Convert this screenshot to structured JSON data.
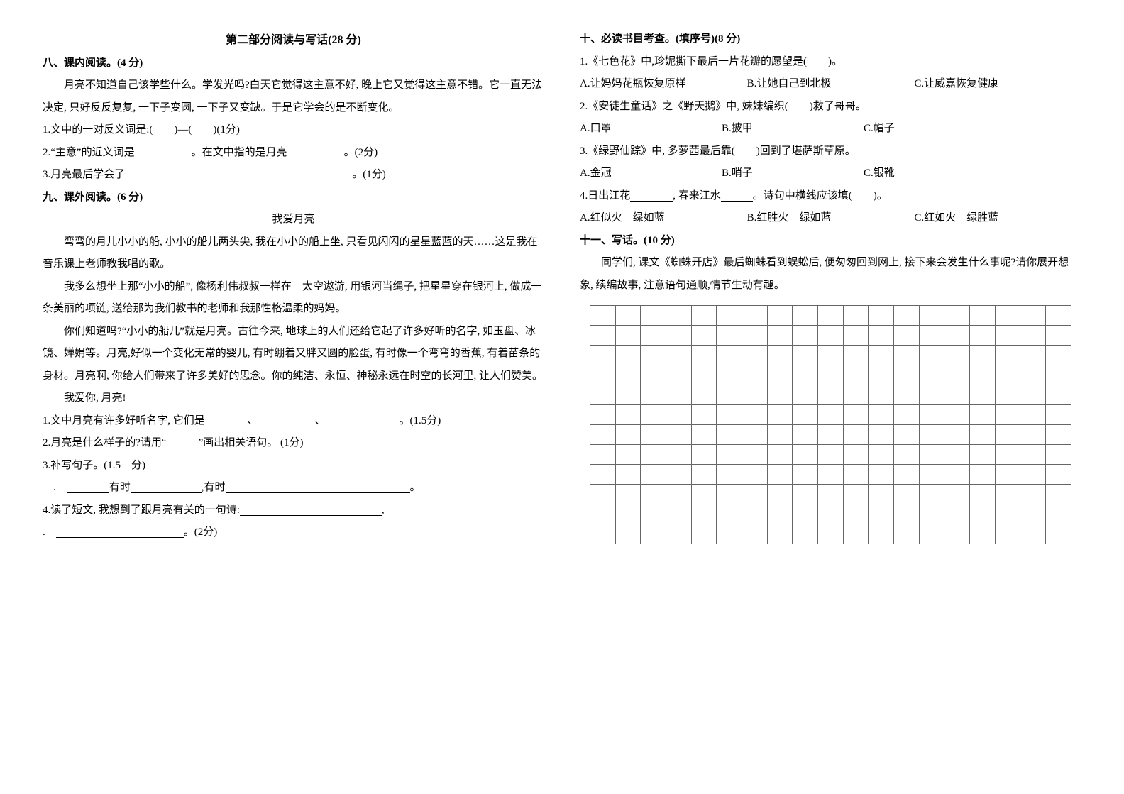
{
  "partTitle": "第二部分阅读与写话(28 分)",
  "s8": {
    "title": "八、课内阅读。(4 分)",
    "passage": "月亮不知道自己该学些什么。学发光吗?白天它觉得这主意不好, 晚上它又觉得这主意不错。它一直无法决定, 只好反反复复, 一下子变圆, 一下子又变缺。于是它学会的是不断变化。",
    "q1": "1.文中的一对反义词是:(　　)—(　　)(1分)",
    "q2a": "2.“主意”的近义词是",
    "q2b": "。在文中指的是月亮",
    "q2c": "。(2分)",
    "q3a": "3.月亮最后学会了",
    "q3b": "。(1分)"
  },
  "s9": {
    "title": "九、课外阅读。(6 分)",
    "storyTitle": "我爱月亮",
    "p1": "弯弯的月儿小小的船, 小小的船儿两头尖, 我在小小的船上坐, 只看见闪闪的星星蓝蓝的天……这是我在音乐课上老师教我唱的歌。",
    "p2": "我多么想坐上那“小小的船”, 像杨利伟叔叔一样在　太空遨游, 用银河当绳子, 把星星穿在银河上, 做成一条美丽的项链, 送给那为我们教书的老师和我那性格温柔的妈妈。",
    "p3": "你们知道吗?“小小的船儿”就是月亮。古往今来, 地球上的人们还给它起了许多好听的名字, 如玉盘、冰镜、婵娟等。月亮,好似一个变化无常的婴儿, 有时绷着又胖又圆的脸蛋, 有时像一个弯弯的香蕉, 有着苗条的身材。月亮啊, 你给人们带来了许多美好的思念。你的纯洁、永恒、神秘永远在时空的长河里, 让人们赞美。",
    "p4": "我爱你, 月亮!",
    "q1a": "1.文中月亮有许多好听名字, 它们是",
    "q1b": "、",
    "q1c": "、",
    "q1d": " 。(1.5分)",
    "q2a": "2.月亮是什么样子的?请用“",
    "q2b": "”画出相关语句。 (1分)",
    "q3": "3.补写句子。(1.5　分)",
    "q3a": "有时",
    "q3b": ",有时",
    "q3c": "。",
    "q4a": "4.读了短文, 我想到了跟月亮有关的一句诗:",
    "q4b": ",",
    "q4c": "。(2分)"
  },
  "s10": {
    "title": "十、必读书目考查。(填序号)(8 分)",
    "q1": "1.《七色花》中,珍妮撕下最后一片花瓣的愿望是(　　)。",
    "q1opts": [
      "A.让妈妈花瓶恢复原样",
      "B.让她自己到北极",
      "C.让威嘉恢复健康"
    ],
    "q2": "2.《安徒生童话》之《野天鹅》中, 妹妹编织(　　)救了哥哥。",
    "q2opts": [
      "A.口罩",
      "B.披甲",
      "C.帽子"
    ],
    "q3": "3.《绿野仙踪》中, 多萝茜最后靠(　　)回到了堪萨斯草原。",
    "q3opts": [
      "A.金冠",
      "B.哨子",
      "C.银靴"
    ],
    "q4a": "4.日出江花",
    "q4b": ", 春来江水",
    "q4c": "。诗句中横线应该填(　　)。",
    "q4opts": [
      "A.红似火　绿如蓝",
      "B.红胜火　绿如蓝",
      "C.红如火　绿胜蓝"
    ]
  },
  "s11": {
    "title": "十一、写话。(10 分)",
    "prompt": "同学们, 课文《蜘蛛开店》最后蜘蛛看到蜈蚣后, 便匆匆回到网上, 接下来会发生什么事呢?请你展开想象, 续编故事, 注意语句通顺,情节生动有趣。",
    "gridRows": 12,
    "gridCols": 19
  }
}
